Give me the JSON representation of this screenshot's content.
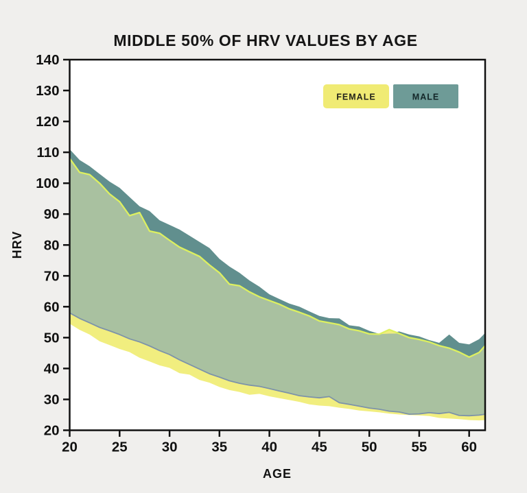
{
  "chart_data": {
    "type": "area",
    "title": "MIDDLE 50% OF HRV VALUES BY AGE",
    "xlabel": "AGE",
    "ylabel": "HRV",
    "xlim": [
      20,
      61.6
    ],
    "ylim": [
      20,
      140
    ],
    "x_ticks": [
      20,
      25,
      30,
      35,
      40,
      45,
      50,
      55,
      60
    ],
    "y_ticks": [
      20,
      30,
      40,
      50,
      60,
      70,
      80,
      90,
      100,
      110,
      120,
      130,
      140
    ],
    "grid": false,
    "legend_position": "top-right-inside",
    "ages": [
      20,
      21,
      22,
      23,
      24,
      25,
      26,
      27,
      28,
      29,
      30,
      31,
      32,
      33,
      34,
      35,
      36,
      37,
      38,
      39,
      40,
      41,
      42,
      43,
      44,
      45,
      46,
      47,
      48,
      49,
      50,
      51,
      52,
      53,
      54,
      55,
      56,
      57,
      58,
      59,
      60,
      61,
      61.6
    ],
    "series": [
      {
        "name": "FEMALE",
        "band": "interquartile",
        "upper": [
          108,
          103.5,
          102.8,
          100,
          96.5,
          94,
          89.5,
          90.5,
          84.5,
          83.8,
          81.5,
          79.3,
          77.8,
          76.3,
          73.5,
          71,
          67.3,
          66.8,
          64.8,
          63.2,
          62,
          60.8,
          59.3,
          58.2,
          57,
          55.4,
          54.8,
          54.2,
          52.8,
          52.2,
          51.2,
          51.1,
          52.6,
          51.3,
          50,
          49.4,
          48.6,
          47.4,
          46.6,
          45.3,
          43.7,
          45.2,
          47.4
        ],
        "lower": [
          54.5,
          52.5,
          51,
          48.8,
          47.6,
          46.3,
          45.3,
          43.5,
          42.3,
          41,
          40.2,
          38.5,
          38,
          36.3,
          35.4,
          34,
          33,
          32.4,
          31.5,
          31.8,
          31,
          30.4,
          29.8,
          29.2,
          28.4,
          28,
          27.8,
          27.3,
          26.9,
          26.4,
          26.1,
          25.8,
          25.4,
          25.1,
          24.9,
          24.8,
          24.6,
          24,
          23.8,
          23.6,
          23.3,
          23.2,
          23.3
        ]
      },
      {
        "name": "MALE",
        "band": "interquartile",
        "upper": [
          111,
          107.5,
          105.5,
          103,
          100.5,
          98.5,
          95.5,
          92.5,
          91,
          88,
          86.5,
          85,
          83,
          81,
          79,
          75.5,
          73,
          71,
          68.5,
          66.5,
          64,
          62.5,
          61,
          60,
          58.5,
          57,
          56.3,
          56.2,
          54,
          53.6,
          52.2,
          51.2,
          51.3,
          52,
          51,
          50.4,
          49.2,
          48.3,
          51,
          48.3,
          47.8,
          49.5,
          51.5
        ],
        "lower": [
          58,
          56.2,
          54.8,
          53.3,
          52.2,
          51,
          49.6,
          48.6,
          47.3,
          45.8,
          44.5,
          42.8,
          41.3,
          39.8,
          38.3,
          37.2,
          36,
          35.2,
          34.6,
          34.2,
          33.5,
          32.7,
          32,
          31.2,
          30.8,
          30.5,
          30.9,
          28.9,
          28.4,
          27.8,
          27.2,
          26.8,
          26.2,
          25.9,
          25.2,
          25.3,
          25.7,
          25.4,
          25.8,
          24.8,
          24.7,
          24.9,
          25.2
        ]
      }
    ],
    "legend": [
      {
        "label": "FEMALE",
        "swatch_color": "#f0eb74",
        "text_color": "#23231a"
      },
      {
        "label": "MALE",
        "swatch_color": "#6e9b97",
        "text_color": "#132628"
      }
    ],
    "colors": {
      "female_fill": "#f1ee7f",
      "male_fill": "#618f8e",
      "overlap_fill": "#a9c1a0",
      "female_top_line": "#ddf060",
      "male_bottom_line": "#7d93a9",
      "axis": "#111111",
      "plot_background": "#ffffff",
      "page_background": "#f0efed"
    }
  }
}
